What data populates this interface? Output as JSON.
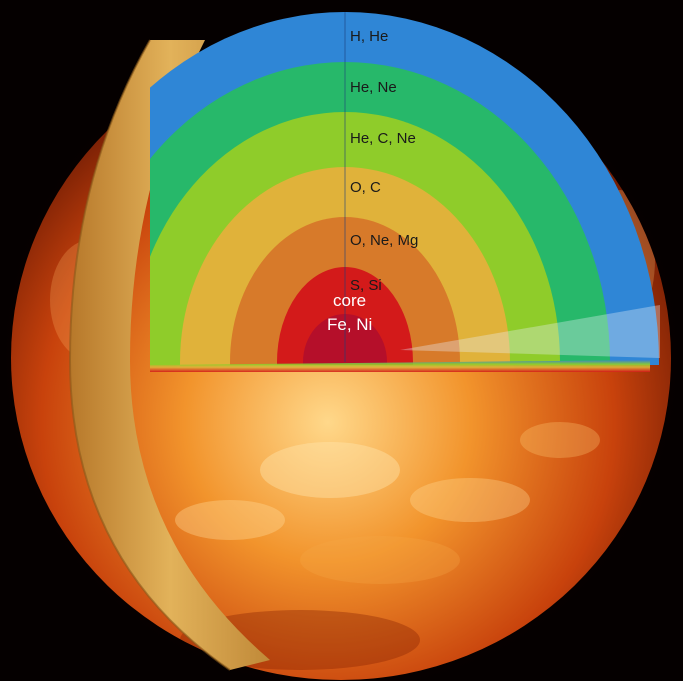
{
  "diagram": {
    "layers": [
      {
        "label": "H, He",
        "color": "#2f86d6"
      },
      {
        "label": "He, Ne",
        "color": "#27b86a"
      },
      {
        "label": "He, C, Ne",
        "color": "#8fcc2a"
      },
      {
        "label": "O, C",
        "color": "#e0b23a"
      },
      {
        "label": "O, Ne, Mg",
        "color": "#d77a2a"
      },
      {
        "label": "S, Si",
        "color": "#d31a1a",
        "label_color": "#5a2cff"
      }
    ],
    "core": {
      "line1": "core",
      "line2": "Fe, Ni",
      "color": "#b50f2a"
    },
    "colors": {
      "star_hot": "#ffd88a",
      "star_mid": "#e86a18",
      "star_dark": "#5a1202",
      "crust": "#d6a040"
    }
  }
}
